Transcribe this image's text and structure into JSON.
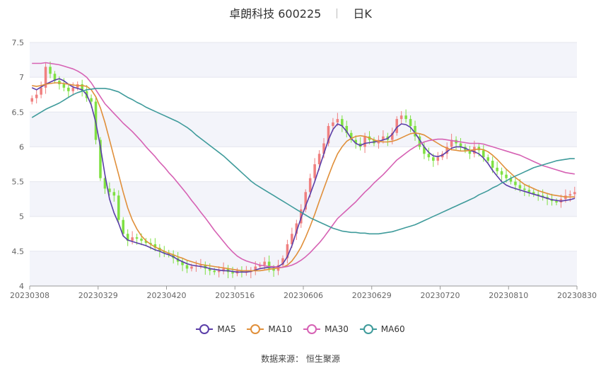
{
  "header": {
    "title": "卓朗科技 600225",
    "period": "日K"
  },
  "chart_data": {
    "type": "candlestick",
    "ylim": [
      4,
      7.5
    ],
    "yticks": [
      "4",
      "4.5",
      "5",
      "5.5",
      "6",
      "6.5",
      "7",
      "7.5"
    ],
    "x_tick_labels": [
      "20230308",
      "20230329",
      "20230420",
      "20230516",
      "20230606",
      "20230629",
      "20230720",
      "20230810",
      "20230830"
    ],
    "num_bars": 120,
    "up_color": "#f08080",
    "down_color": "#7fe043",
    "close": [
      6.7,
      6.75,
      6.85,
      7.15,
      7.05,
      6.95,
      6.9,
      6.85,
      6.8,
      6.85,
      6.9,
      6.8,
      6.7,
      6.65,
      6.1,
      5.55,
      5.4,
      5.35,
      5.3,
      4.95,
      4.75,
      4.65,
      4.7,
      4.68,
      4.65,
      4.62,
      4.6,
      4.55,
      4.5,
      4.48,
      4.45,
      4.4,
      4.35,
      4.3,
      4.25,
      4.28,
      4.3,
      4.3,
      4.25,
      4.22,
      4.2,
      4.22,
      4.25,
      4.2,
      4.18,
      4.22,
      4.2,
      4.2,
      4.22,
      4.28,
      4.3,
      4.35,
      4.25,
      4.22,
      4.3,
      4.4,
      4.6,
      4.75,
      4.9,
      5.1,
      5.35,
      5.55,
      5.75,
      5.9,
      6.05,
      6.3,
      6.35,
      6.4,
      6.3,
      6.2,
      6.1,
      6.05,
      6.0,
      6.15,
      6.1,
      6.05,
      6.1,
      6.15,
      6.1,
      6.2,
      6.4,
      6.45,
      6.4,
      6.3,
      6.15,
      6.0,
      5.9,
      5.85,
      5.8,
      5.85,
      5.9,
      6.0,
      6.1,
      6.05,
      6.0,
      5.95,
      5.9,
      6.0,
      5.95,
      5.85,
      5.8,
      5.7,
      5.65,
      5.6,
      5.55,
      5.5,
      5.45,
      5.4,
      5.38,
      5.35,
      5.32,
      5.3,
      5.28,
      5.25,
      5.22,
      5.2,
      5.25,
      5.3,
      5.32,
      5.35
    ],
    "series": [
      {
        "name": "MA5",
        "color": "#5b3ea8",
        "values": [
          6.85,
          6.82,
          6.86,
          6.9,
          6.93,
          6.96,
          6.98,
          6.95,
          6.9,
          6.86,
          6.84,
          6.82,
          6.75,
          6.6,
          6.35,
          6.0,
          5.6,
          5.25,
          5.05,
          4.9,
          4.72,
          4.66,
          4.64,
          4.62,
          4.6,
          4.58,
          4.55,
          4.52,
          4.5,
          4.47,
          4.45,
          4.42,
          4.38,
          4.35,
          4.32,
          4.3,
          4.29,
          4.28,
          4.27,
          4.25,
          4.24,
          4.23,
          4.22,
          4.22,
          4.21,
          4.2,
          4.2,
          4.2,
          4.21,
          4.23,
          4.25,
          4.26,
          4.27,
          4.27,
          4.28,
          4.32,
          4.42,
          4.58,
          4.78,
          4.98,
          5.15,
          5.32,
          5.5,
          5.7,
          5.9,
          6.1,
          6.25,
          6.33,
          6.3,
          6.22,
          6.12,
          6.05,
          6.02,
          6.05,
          6.06,
          6.07,
          6.08,
          6.1,
          6.12,
          6.18,
          6.28,
          6.33,
          6.32,
          6.28,
          6.2,
          6.1,
          6.0,
          5.92,
          5.87,
          5.86,
          5.88,
          5.93,
          5.98,
          6.0,
          6.0,
          5.98,
          5.95,
          5.93,
          5.9,
          5.84,
          5.76,
          5.66,
          5.58,
          5.5,
          5.45,
          5.42,
          5.4,
          5.38,
          5.36,
          5.34,
          5.32,
          5.3,
          5.28,
          5.26,
          5.24,
          5.23,
          5.22,
          5.23,
          5.24,
          5.26
        ]
      },
      {
        "name": "MA10",
        "color": "#e08f3a",
        "values": [
          6.88,
          6.87,
          6.88,
          6.9,
          6.91,
          6.92,
          6.92,
          6.91,
          6.9,
          6.89,
          6.88,
          6.88,
          6.87,
          6.82,
          6.72,
          6.56,
          6.35,
          6.1,
          5.85,
          5.6,
          5.35,
          5.12,
          4.95,
          4.82,
          4.72,
          4.65,
          4.6,
          4.56,
          4.53,
          4.5,
          4.47,
          4.45,
          4.42,
          4.4,
          4.37,
          4.35,
          4.33,
          4.31,
          4.3,
          4.29,
          4.28,
          4.27,
          4.26,
          4.25,
          4.24,
          4.23,
          4.22,
          4.22,
          4.22,
          4.22,
          4.22,
          4.23,
          4.24,
          4.25,
          4.26,
          4.27,
          4.3,
          4.36,
          4.45,
          4.56,
          4.7,
          4.86,
          5.03,
          5.22,
          5.4,
          5.58,
          5.75,
          5.9,
          6.0,
          6.08,
          6.12,
          6.15,
          6.16,
          6.15,
          6.13,
          6.1,
          6.08,
          6.07,
          6.07,
          6.08,
          6.1,
          6.13,
          6.16,
          6.19,
          6.2,
          6.19,
          6.17,
          6.13,
          6.09,
          6.05,
          6.01,
          5.98,
          5.96,
          5.95,
          5.94,
          5.94,
          5.95,
          5.96,
          5.97,
          5.96,
          5.93,
          5.88,
          5.82,
          5.75,
          5.68,
          5.62,
          5.56,
          5.51,
          5.46,
          5.43,
          5.4,
          5.37,
          5.35,
          5.33,
          5.31,
          5.3,
          5.29,
          5.28,
          5.28,
          5.28
        ]
      },
      {
        "name": "MA30",
        "color": "#d662b4",
        "values": [
          7.2,
          7.2,
          7.2,
          7.21,
          7.2,
          7.19,
          7.18,
          7.16,
          7.14,
          7.12,
          7.09,
          7.05,
          7.0,
          6.92,
          6.82,
          6.72,
          6.62,
          6.55,
          6.48,
          6.41,
          6.34,
          6.28,
          6.22,
          6.15,
          6.08,
          6.0,
          5.93,
          5.86,
          5.78,
          5.71,
          5.63,
          5.56,
          5.48,
          5.4,
          5.32,
          5.23,
          5.15,
          5.06,
          4.98,
          4.89,
          4.8,
          4.72,
          4.64,
          4.56,
          4.49,
          4.43,
          4.39,
          4.36,
          4.34,
          4.32,
          4.3,
          4.29,
          4.28,
          4.28,
          4.27,
          4.27,
          4.28,
          4.3,
          4.33,
          4.37,
          4.42,
          4.48,
          4.55,
          4.62,
          4.7,
          4.79,
          4.88,
          4.97,
          5.03,
          5.09,
          5.15,
          5.21,
          5.28,
          5.35,
          5.41,
          5.48,
          5.54,
          5.6,
          5.67,
          5.74,
          5.81,
          5.86,
          5.91,
          5.96,
          6.0,
          6.04,
          6.07,
          6.09,
          6.1,
          6.11,
          6.11,
          6.1,
          6.09,
          6.08,
          6.07,
          6.06,
          6.05,
          6.05,
          6.05,
          6.04,
          6.02,
          6.0,
          5.98,
          5.96,
          5.94,
          5.92,
          5.9,
          5.88,
          5.85,
          5.82,
          5.79,
          5.76,
          5.73,
          5.71,
          5.69,
          5.67,
          5.65,
          5.63,
          5.62,
          5.61
        ]
      },
      {
        "name": "MA60",
        "color": "#3f9b9b",
        "values": [
          6.42,
          6.46,
          6.5,
          6.54,
          6.57,
          6.6,
          6.63,
          6.67,
          6.71,
          6.75,
          6.78,
          6.8,
          6.82,
          6.83,
          6.84,
          6.84,
          6.84,
          6.83,
          6.81,
          6.79,
          6.75,
          6.71,
          6.68,
          6.64,
          6.61,
          6.57,
          6.54,
          6.51,
          6.48,
          6.45,
          6.42,
          6.39,
          6.36,
          6.32,
          6.28,
          6.23,
          6.17,
          6.12,
          6.07,
          6.02,
          5.97,
          5.92,
          5.87,
          5.81,
          5.75,
          5.69,
          5.63,
          5.57,
          5.51,
          5.46,
          5.42,
          5.38,
          5.34,
          5.3,
          5.26,
          5.22,
          5.18,
          5.14,
          5.1,
          5.06,
          5.02,
          4.98,
          4.95,
          4.92,
          4.89,
          4.86,
          4.83,
          4.81,
          4.79,
          4.78,
          4.77,
          4.77,
          4.76,
          4.76,
          4.75,
          4.75,
          4.75,
          4.76,
          4.77,
          4.78,
          4.8,
          4.82,
          4.84,
          4.86,
          4.88,
          4.91,
          4.94,
          4.97,
          5.0,
          5.03,
          5.06,
          5.09,
          5.12,
          5.15,
          5.18,
          5.21,
          5.24,
          5.27,
          5.31,
          5.34,
          5.37,
          5.41,
          5.44,
          5.48,
          5.51,
          5.55,
          5.58,
          5.61,
          5.64,
          5.67,
          5.7,
          5.72,
          5.74,
          5.76,
          5.78,
          5.8,
          5.81,
          5.82,
          5.83,
          5.83
        ]
      }
    ]
  },
  "legend": {
    "items": [
      "MA5",
      "MA10",
      "MA30",
      "MA60"
    ]
  },
  "footer": {
    "source_label": "数据来源：",
    "source_value": "恒生聚源"
  }
}
